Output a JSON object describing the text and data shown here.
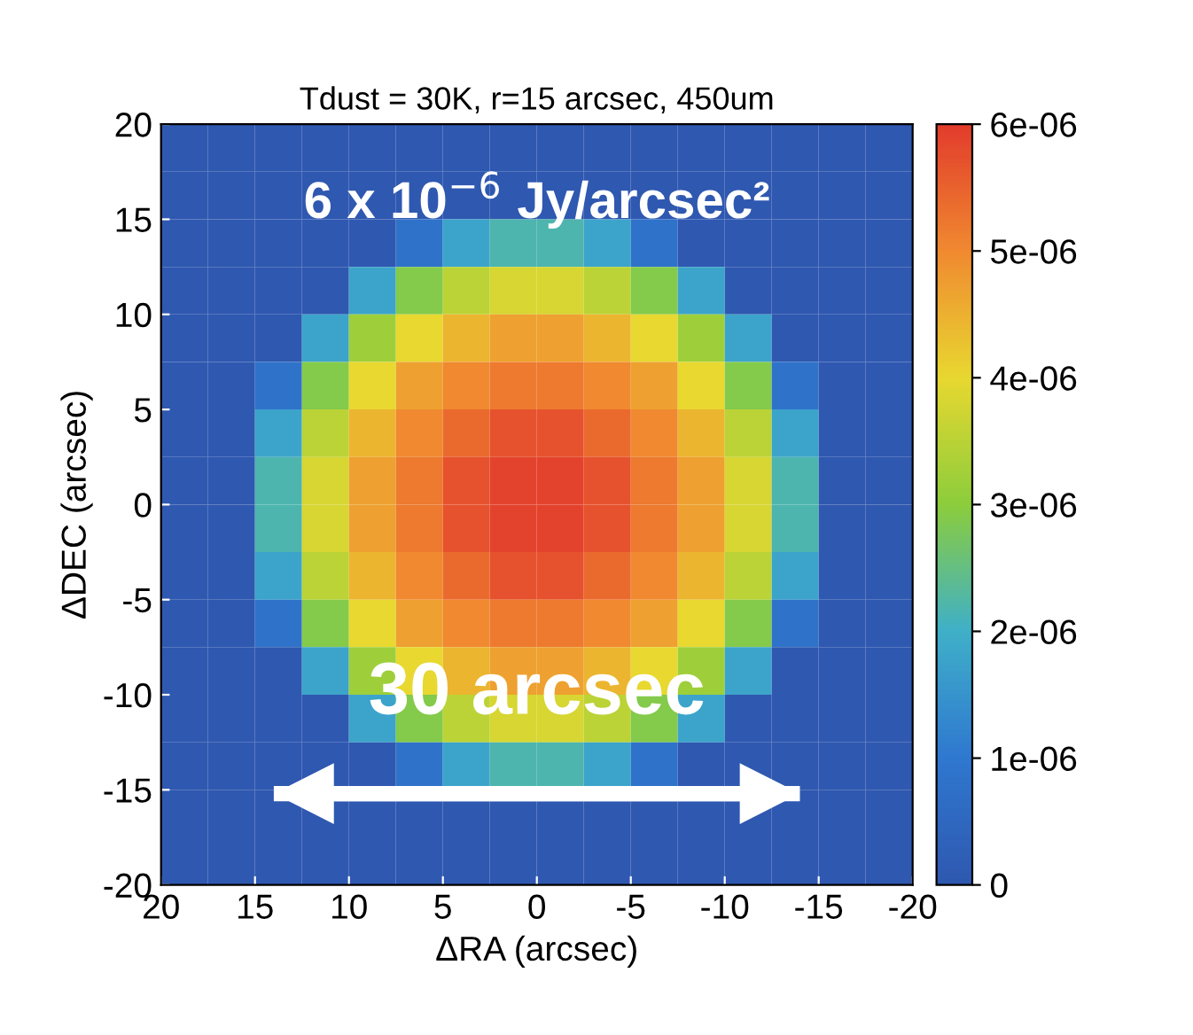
{
  "chart_data": {
    "type": "heatmap",
    "title": "Tdust = 30K, r=15 arcsec, 450um",
    "xlabel": "ΔRA (arcsec)",
    "ylabel": "ΔDEC (arcsec)",
    "annotations": [
      "6 x 10$^{−6}$ Jy/arcsec²",
      "30 arcsec"
    ],
    "xlim": [
      20,
      -20
    ],
    "xticks": [
      20,
      15,
      10,
      5,
      0,
      -5,
      -10,
      -15,
      -20
    ],
    "ylim": [
      -20,
      20
    ],
    "yticks": [
      -20,
      -15,
      -10,
      -5,
      0,
      5,
      10,
      15,
      20
    ],
    "clim": [
      0,
      6e-06
    ],
    "cticks": [
      0,
      {
        "value": 1e-06,
        "label": "1e-06"
      },
      {
        "value": 2e-06,
        "label": "2e-06"
      },
      {
        "value": 3e-06,
        "label": "3e-06"
      },
      {
        "value": 4e-06,
        "label": "4e-06"
      },
      {
        "value": 5e-06,
        "label": "5e-06"
      },
      {
        "value": 6e-06,
        "label": "6e-06"
      }
    ],
    "cells": [
      [
        0,
        0,
        0,
        0,
        0,
        0,
        0,
        0,
        0,
        0,
        0,
        0,
        0,
        0,
        0,
        0
      ],
      [
        0,
        0,
        0,
        0,
        0,
        0,
        0,
        0,
        0,
        0,
        0,
        0,
        0,
        0,
        0,
        0
      ],
      [
        0,
        0,
        0,
        0,
        0,
        8e-07,
        1.8e-06,
        2.2e-06,
        2.2e-06,
        1.8e-06,
        8e-07,
        0,
        0,
        0,
        0,
        0
      ],
      [
        0,
        0,
        0,
        0,
        1.8e-06,
        2.9e-06,
        3.5e-06,
        3.8e-06,
        3.8e-06,
        3.5e-06,
        2.9e-06,
        1.8e-06,
        0,
        0,
        0,
        0
      ],
      [
        0,
        0,
        0,
        1.8e-06,
        3.2e-06,
        4e-06,
        4.45e-06,
        4.7e-06,
        4.7e-06,
        4.45e-06,
        4e-06,
        3.2e-06,
        1.8e-06,
        0,
        0,
        0
      ],
      [
        0,
        0,
        8e-07,
        2.9e-06,
        4e-06,
        4.7e-06,
        5e-06,
        5.2e-06,
        5.2e-06,
        5e-06,
        4.7e-06,
        4e-06,
        2.9e-06,
        8e-07,
        0,
        0
      ],
      [
        0,
        0,
        1.8e-06,
        3.5e-06,
        4.45e-06,
        5e-06,
        5.4e-06,
        5.7e-06,
        5.7e-06,
        5.4e-06,
        5e-06,
        4.45e-06,
        3.5e-06,
        1.8e-06,
        0,
        0
      ],
      [
        0,
        0,
        2.2e-06,
        3.8e-06,
        4.7e-06,
        5.2e-06,
        5.7e-06,
        5.9e-06,
        5.9e-06,
        5.7e-06,
        5.2e-06,
        4.7e-06,
        3.8e-06,
        2.2e-06,
        0,
        0
      ],
      [
        0,
        0,
        2.2e-06,
        3.8e-06,
        4.7e-06,
        5.2e-06,
        5.7e-06,
        5.9e-06,
        5.9e-06,
        5.7e-06,
        5.2e-06,
        4.7e-06,
        3.8e-06,
        2.2e-06,
        0,
        0
      ],
      [
        0,
        0,
        1.8e-06,
        3.5e-06,
        4.45e-06,
        5e-06,
        5.4e-06,
        5.7e-06,
        5.7e-06,
        5.4e-06,
        5e-06,
        4.45e-06,
        3.5e-06,
        1.8e-06,
        0,
        0
      ],
      [
        0,
        0,
        8e-07,
        2.9e-06,
        4e-06,
        4.7e-06,
        5e-06,
        5.2e-06,
        5.2e-06,
        5e-06,
        4.7e-06,
        4e-06,
        2.9e-06,
        8e-07,
        0,
        0
      ],
      [
        0,
        0,
        0,
        1.8e-06,
        3.2e-06,
        4e-06,
        4.45e-06,
        4.7e-06,
        4.7e-06,
        4.45e-06,
        4e-06,
        3.2e-06,
        1.8e-06,
        0,
        0,
        0
      ],
      [
        0,
        0,
        0,
        0,
        1.8e-06,
        2.9e-06,
        3.5e-06,
        3.8e-06,
        3.8e-06,
        3.5e-06,
        2.9e-06,
        1.8e-06,
        0,
        0,
        0,
        0
      ],
      [
        0,
        0,
        0,
        0,
        0,
        8e-07,
        1.8e-06,
        2.2e-06,
        2.2e-06,
        1.8e-06,
        8e-07,
        0,
        0,
        0,
        0,
        0
      ],
      [
        0,
        0,
        0,
        0,
        0,
        0,
        0,
        0,
        0,
        0,
        0,
        0,
        0,
        0,
        0,
        0
      ],
      [
        0,
        0,
        0,
        0,
        0,
        0,
        0,
        0,
        0,
        0,
        0,
        0,
        0,
        0,
        0,
        0
      ]
    ]
  }
}
